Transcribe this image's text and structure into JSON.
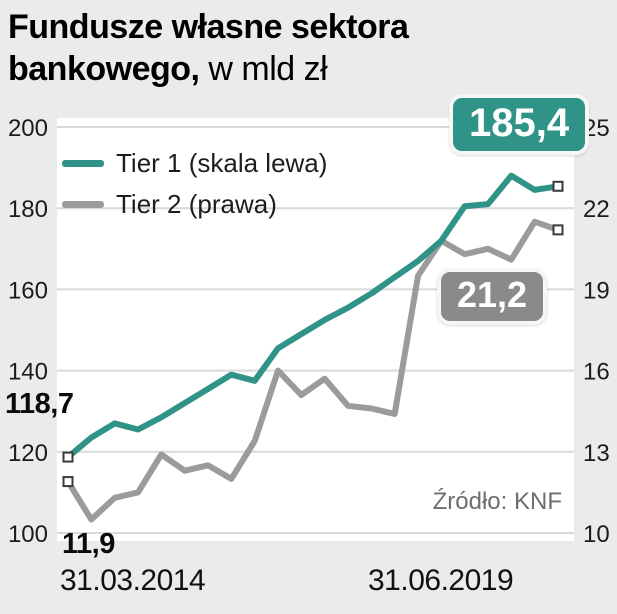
{
  "title": {
    "line1": "Fundusze własne sektora",
    "line2_bold": "bankowego,",
    "line2_rest": " w mld zł"
  },
  "colors": {
    "background": "#ebebeb",
    "plot_background": "#ffffff",
    "grid": "#d9d9d9",
    "tier1": "#2f9487",
    "tier2": "#9b9b9b",
    "tier2_badge": "#8a8a8a",
    "marker_fill": "#ffffff",
    "marker_stroke": "#3a3a3a"
  },
  "chart_data": {
    "type": "line",
    "title": "Fundusze własne sektora bankowego, w mld zł",
    "x_start_label": "31.03.2014",
    "x_end_label": "31.06.2019",
    "source": "Źródło: KNF",
    "grid": true,
    "legend_position": "top-left",
    "left_axis": {
      "ticks": [
        200,
        180,
        160,
        140,
        120,
        100
      ],
      "range": [
        100,
        200
      ]
    },
    "right_axis": {
      "ticks": [
        25,
        22,
        19,
        16,
        13,
        10
      ],
      "range": [
        10,
        25
      ]
    },
    "series": [
      {
        "name": "Tier 1 (skala lewa)",
        "axis": "left",
        "color": "#2f9487",
        "badge_color": "#2f9487",
        "start_label": "118,7",
        "end_label": "185,4",
        "values": [
          118.7,
          123.5,
          127,
          125.5,
          128.5,
          132,
          135.5,
          139,
          137.5,
          145.5,
          149,
          152.5,
          155.5,
          159,
          163,
          167,
          172,
          180.5,
          181,
          188,
          184.5,
          185.4
        ]
      },
      {
        "name": "Tier 2 (prawa)",
        "axis": "right",
        "color": "#9b9b9b",
        "badge_color": "#8a8a8a",
        "start_label": "11,9",
        "end_label": "21,2",
        "values": [
          11.9,
          10.5,
          11.3,
          11.5,
          12.9,
          12.3,
          12.5,
          12.0,
          13.4,
          16.0,
          15.1,
          15.7,
          14.7,
          14.6,
          14.4,
          19.5,
          20.8,
          20.3,
          20.5,
          20.1,
          21.5,
          21.2
        ]
      }
    ]
  }
}
